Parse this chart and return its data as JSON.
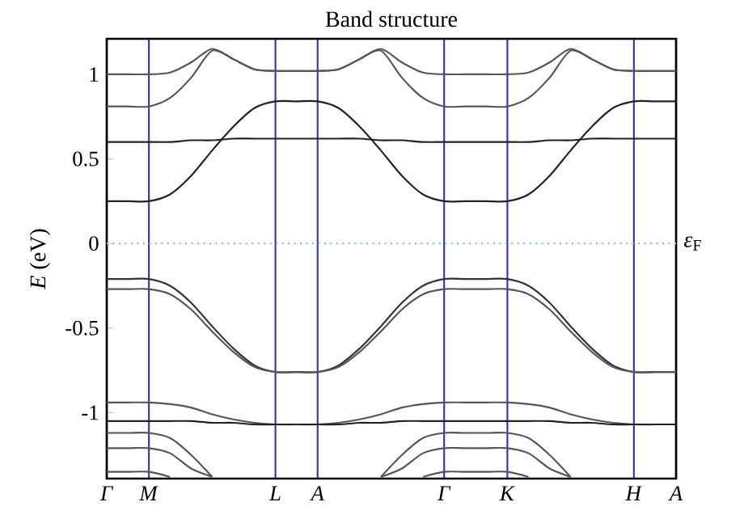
{
  "chart_data": {
    "type": "line",
    "title": "Band structure",
    "ylabel": "*E* (eV)",
    "categories": [
      "*Γ*",
      null,
      "*M*",
      null,
      null,
      null,
      null,
      null,
      "*L*",
      null,
      "*A*",
      null,
      null,
      null,
      null,
      null,
      "*Γ*",
      null,
      null,
      "*K*",
      null,
      null,
      null,
      null,
      null,
      "*H*",
      null,
      "*A*"
    ],
    "ylim": [
      -1.39,
      1.21
    ],
    "yticks": [
      -1,
      -0.5,
      0,
      0.5,
      1
    ],
    "grid": "x",
    "ref_lines": [
      {
        "axis": "y",
        "value": 0,
        "label": "*ε*$_{F}$",
        "color": "#8cc9b4",
        "line_style": "dotted"
      }
    ],
    "series": [
      {
        "color": "#555555",
        "values": [
          1.0,
          1.0,
          1.0,
          1.01,
          1.07,
          1.15,
          1.09,
          1.03,
          1.02,
          1.02,
          1.02,
          1.03,
          1.09,
          1.15,
          1.07,
          1.01,
          1.0,
          1.0,
          1.0,
          1.0,
          1.01,
          1.07,
          1.15,
          1.09,
          1.03,
          1.02,
          1.02,
          1.02
        ]
      },
      {
        "color": "#555555",
        "values": [
          0.81,
          0.81,
          0.81,
          0.86,
          0.98,
          1.14,
          1.09,
          1.03,
          1.02,
          1.02,
          1.02,
          1.03,
          1.09,
          1.14,
          0.98,
          0.86,
          0.81,
          0.81,
          0.81,
          0.81,
          0.86,
          0.98,
          1.14,
          1.09,
          1.03,
          1.02,
          1.02,
          1.02
        ]
      },
      {
        "color": "#222222",
        "values": [
          0.6,
          0.6,
          0.6,
          0.6,
          0.61,
          0.61,
          0.62,
          0.62,
          0.62,
          0.62,
          0.62,
          0.62,
          0.62,
          0.61,
          0.61,
          0.6,
          0.6,
          0.6,
          0.6,
          0.6,
          0.6,
          0.61,
          0.61,
          0.62,
          0.62,
          0.62,
          0.62,
          0.62
        ]
      },
      {
        "color": "#222222",
        "values": [
          0.25,
          0.25,
          0.25,
          0.29,
          0.4,
          0.55,
          0.69,
          0.8,
          0.84,
          0.84,
          0.84,
          0.8,
          0.69,
          0.55,
          0.4,
          0.29,
          0.25,
          0.25,
          0.25,
          0.25,
          0.29,
          0.4,
          0.55,
          0.69,
          0.8,
          0.84,
          0.84,
          0.84
        ]
      },
      {
        "color": "#333333",
        "values": [
          -0.21,
          -0.21,
          -0.21,
          -0.25,
          -0.35,
          -0.49,
          -0.62,
          -0.72,
          -0.76,
          -0.76,
          -0.76,
          -0.72,
          -0.62,
          -0.49,
          -0.35,
          -0.25,
          -0.21,
          -0.21,
          -0.21,
          -0.21,
          -0.25,
          -0.35,
          -0.49,
          -0.62,
          -0.72,
          -0.76,
          -0.76,
          -0.76
        ]
      },
      {
        "color": "#555555",
        "values": [
          -0.27,
          -0.27,
          -0.27,
          -0.3,
          -0.39,
          -0.52,
          -0.64,
          -0.73,
          -0.76,
          -0.76,
          -0.76,
          -0.73,
          -0.64,
          -0.52,
          -0.39,
          -0.3,
          -0.27,
          -0.27,
          -0.27,
          -0.27,
          -0.3,
          -0.39,
          -0.52,
          -0.64,
          -0.73,
          -0.76,
          -0.76,
          -0.76
        ]
      },
      {
        "color": "#555555",
        "values": [
          -0.94,
          -0.94,
          -0.94,
          -0.95,
          -0.97,
          -1.01,
          -1.04,
          -1.06,
          -1.07,
          -1.07,
          -1.07,
          -1.06,
          -1.04,
          -1.01,
          -0.97,
          -0.95,
          -0.94,
          -0.94,
          -0.94,
          -0.94,
          -0.95,
          -0.97,
          -1.01,
          -1.04,
          -1.06,
          -1.07,
          -1.07,
          -1.07
        ]
      },
      {
        "color": "#222222",
        "values": [
          -1.05,
          -1.05,
          -1.05,
          -1.05,
          -1.05,
          -1.06,
          -1.06,
          -1.07,
          -1.07,
          -1.07,
          -1.07,
          -1.07,
          -1.06,
          -1.06,
          -1.05,
          -1.05,
          -1.05,
          -1.05,
          -1.05,
          -1.05,
          -1.05,
          -1.05,
          -1.06,
          -1.06,
          -1.07,
          -1.07,
          -1.07,
          -1.07
        ]
      },
      {
        "color": "#555555",
        "values": [
          -1.12,
          -1.12,
          -1.12,
          -1.15,
          -1.25,
          -1.38,
          null,
          null,
          null,
          null,
          null,
          null,
          null,
          -1.38,
          -1.25,
          -1.15,
          -1.12,
          -1.12,
          -1.12,
          -1.12,
          -1.15,
          -1.25,
          -1.38,
          null,
          null,
          null,
          null,
          null
        ]
      },
      {
        "color": "#555555",
        "values": [
          -1.21,
          -1.21,
          -1.21,
          -1.24,
          -1.33,
          -1.38,
          null,
          null,
          null,
          null,
          null,
          null,
          null,
          -1.38,
          -1.33,
          -1.24,
          -1.21,
          -1.21,
          -1.21,
          -1.21,
          -1.24,
          -1.33,
          -1.38,
          null,
          null,
          null,
          null,
          null
        ]
      },
      {
        "color": "#555555",
        "values": [
          -1.35,
          -1.35,
          -1.35,
          -1.38,
          null,
          null,
          null,
          null,
          null,
          null,
          null,
          null,
          null,
          null,
          null,
          -1.38,
          -1.35,
          -1.35,
          -1.35,
          -1.35,
          -1.38,
          null,
          null,
          null,
          null,
          null,
          null,
          null
        ]
      }
    ]
  }
}
